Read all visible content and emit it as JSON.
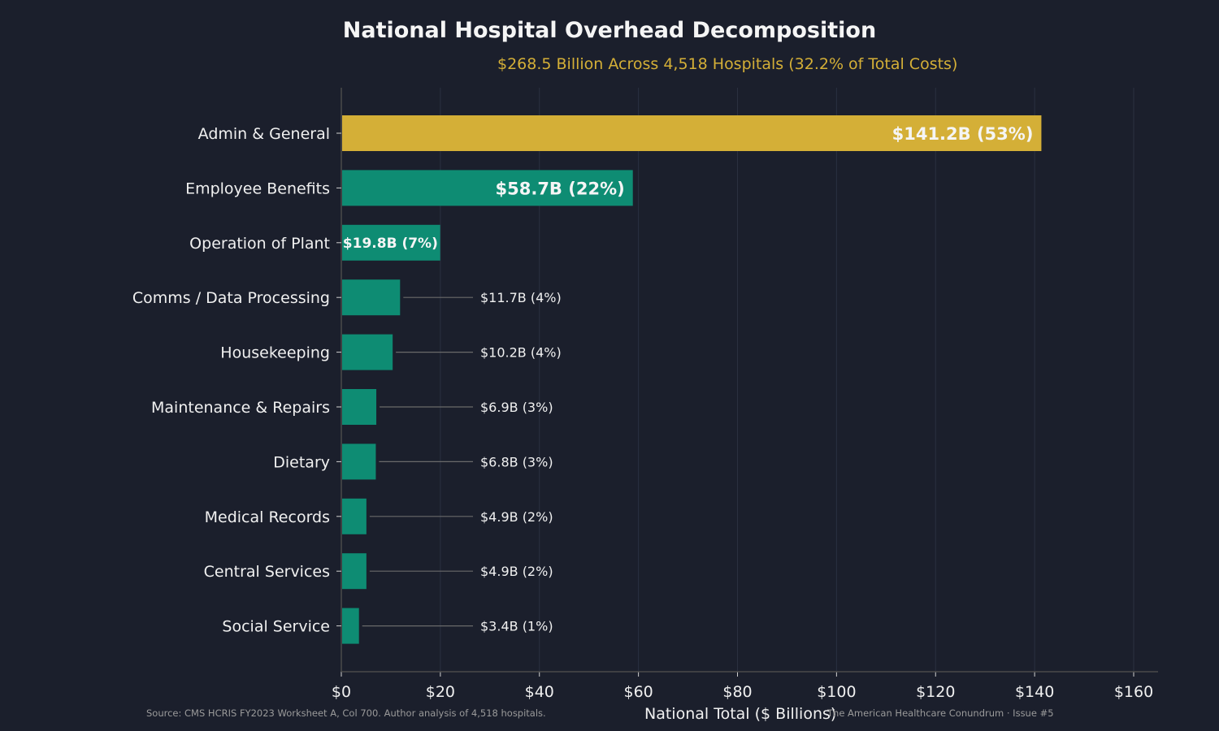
{
  "chart_data": {
    "type": "bar",
    "orientation": "horizontal",
    "title": "National Hospital Overhead Decomposition",
    "subtitle": "$268.5 Billion Across 4,518 Hospitals (32.2% of Total Costs)",
    "xlabel": "National Total ($ Billions)",
    "ylabel": "",
    "xlim": [
      0,
      165
    ],
    "xticks": [
      0,
      20,
      40,
      60,
      80,
      100,
      120,
      140,
      160
    ],
    "xtick_labels": [
      "$0",
      "$20",
      "$40",
      "$60",
      "$80",
      "$100",
      "$120",
      "$140",
      "$160"
    ],
    "grid": "vertical",
    "categories": [
      "Admin & General",
      "Employee Benefits",
      "Operation of Plant",
      "Comms / Data Processing",
      "Housekeeping",
      "Maintenance & Repairs",
      "Dietary",
      "Medical Records",
      "Central Services",
      "Social Service"
    ],
    "values": [
      141.2,
      58.7,
      19.8,
      11.7,
      10.2,
      6.9,
      6.8,
      4.9,
      4.9,
      3.4
    ],
    "data_labels": [
      "$141.2B (53%)",
      "$58.7B (22%)",
      "$19.8B (7%)",
      "$11.7B (4%)",
      "$10.2B (4%)",
      "$6.9B (3%)",
      "$6.8B (3%)",
      "$4.9B (2%)",
      "$4.9B (2%)",
      "$3.4B (1%)"
    ],
    "highlight_index": 0,
    "colors": {
      "highlight": "#d4af37",
      "bar": "#0e8c73",
      "background": "#1b1f2c",
      "text": "#f0f0f0",
      "grid": "#2b3040",
      "leader": "#6a6a6a"
    }
  },
  "footer": {
    "source": "Source: CMS HCRIS FY2023 Worksheet A, Col 700. Author analysis of 4,518 hospitals.",
    "credit": "The American Healthcare Conundrum · Issue #5"
  }
}
